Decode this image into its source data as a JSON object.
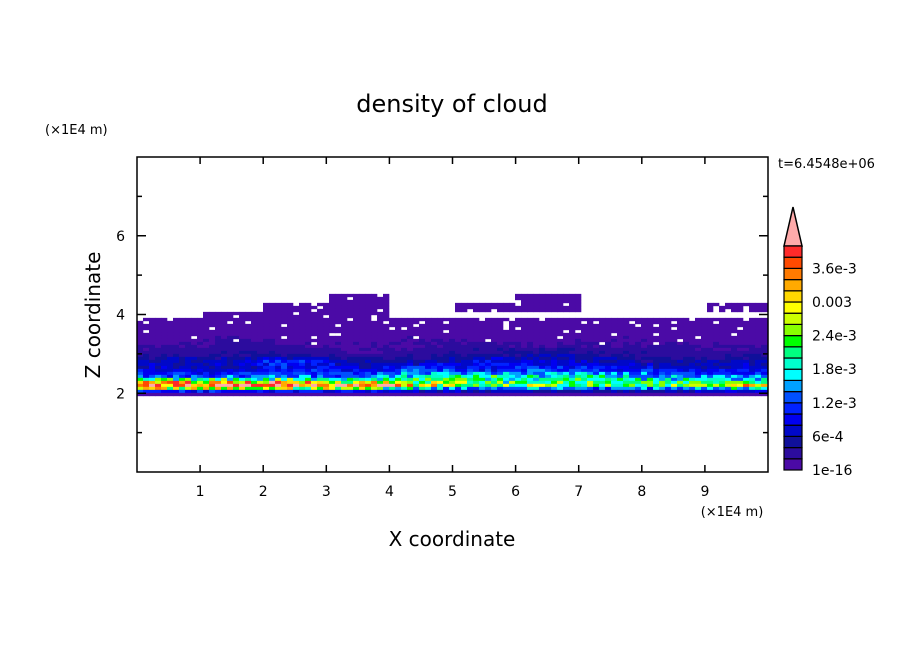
{
  "chart_data": {
    "type": "heatmap",
    "title": "density of cloud",
    "xlabel": "X coordinate",
    "ylabel": "Z coordinate",
    "x_unit": "(×1E4 m)",
    "y_unit": "(×1E4 m)",
    "time_label": "t=6.4548e+06",
    "xlim": [
      0,
      10
    ],
    "ylim": [
      0,
      8
    ],
    "x_ticks": [
      "1",
      "2",
      "3",
      "4",
      "5",
      "6",
      "7",
      "8",
      "9"
    ],
    "y_ticks": [
      "2",
      "4",
      "6"
    ],
    "colorbar": {
      "labels": [
        "1e-16",
        "6e-4",
        "1.2e-3",
        "1.8e-3",
        "2.4e-3",
        "0.003",
        "3.6e-3"
      ],
      "level_step": 0.0002,
      "levels_count": 20,
      "colors": [
        "#4b0aa6",
        "#2c0c9e",
        "#10109a",
        "#0008c8",
        "#0000f0",
        "#0022ff",
        "#0050ff",
        "#00a0ff",
        "#00ffff",
        "#00ffcc",
        "#00ff80",
        "#00ff00",
        "#88ff00",
        "#ccff00",
        "#ffff00",
        "#ffd800",
        "#ffaa00",
        "#ff7a00",
        "#ff4a00",
        "#ff2a2a"
      ],
      "overflow_color": "#ffaaaa"
    },
    "x": [
      0.5,
      1.5,
      2.5,
      3.5,
      4.5,
      5.5,
      6.5,
      7.5,
      8.5,
      9.5
    ],
    "z": [
      2.0,
      2.2,
      2.4,
      2.6,
      2.8,
      3.0,
      3.2,
      3.4,
      3.6,
      3.8,
      4.0,
      4.2,
      4.4
    ],
    "values": [
      [
        0.0001,
        0.0001,
        0.0001,
        0.0001,
        0.0001,
        0.0001,
        0.0001,
        0.0001,
        0.0001,
        0.0001
      ],
      [
        0.0042,
        0.0042,
        0.0042,
        0.004,
        0.0028,
        0.0022,
        0.0024,
        0.002,
        0.0022,
        0.0028
      ],
      [
        0.0012,
        0.0014,
        0.0015,
        0.0012,
        0.002,
        0.0022,
        0.0018,
        0.002,
        0.0016,
        0.0014
      ],
      [
        0.0008,
        0.0006,
        0.001,
        0.0008,
        0.0012,
        0.0008,
        0.0012,
        0.001,
        0.0008,
        0.0008
      ],
      [
        0.0006,
        0.0007,
        0.0012,
        0.0005,
        0.0006,
        0.001,
        0.0008,
        0.0006,
        0.0005,
        0.0006
      ],
      [
        0.0003,
        0.0004,
        0.0003,
        0.0002,
        0.0003,
        0.0004,
        0.0005,
        0.0004,
        0.0003,
        0.0003
      ],
      [
        0.0002,
        0.0003,
        0.0002,
        0.0002,
        0.0002,
        0.0003,
        0.0002,
        0.0002,
        0.0003,
        0.0002
      ],
      [
        0.0001,
        0.0002,
        0.0001,
        0.0001,
        0.0002,
        0.0001,
        0.0001,
        0.0002,
        0.0001,
        0.0001
      ],
      [
        0.0001,
        0.0001,
        5e-05,
        0.0001,
        0.0001,
        5e-05,
        0.0001,
        0.0001,
        0.0001,
        0.0001
      ],
      [
        3e-05,
        3e-05,
        3e-05,
        3e-05,
        3e-05,
        3e-05,
        3e-05,
        3e-05,
        3e-05,
        3e-05
      ],
      [
        0,
        3e-05,
        3e-05,
        3e-05,
        0,
        0,
        0,
        0,
        0,
        0
      ],
      [
        0,
        0,
        3e-05,
        3e-05,
        0,
        3e-05,
        3e-05,
        0,
        0,
        3e-05
      ],
      [
        0,
        0,
        0,
        3e-05,
        0,
        0,
        3e-05,
        0,
        0,
        0
      ]
    ]
  }
}
